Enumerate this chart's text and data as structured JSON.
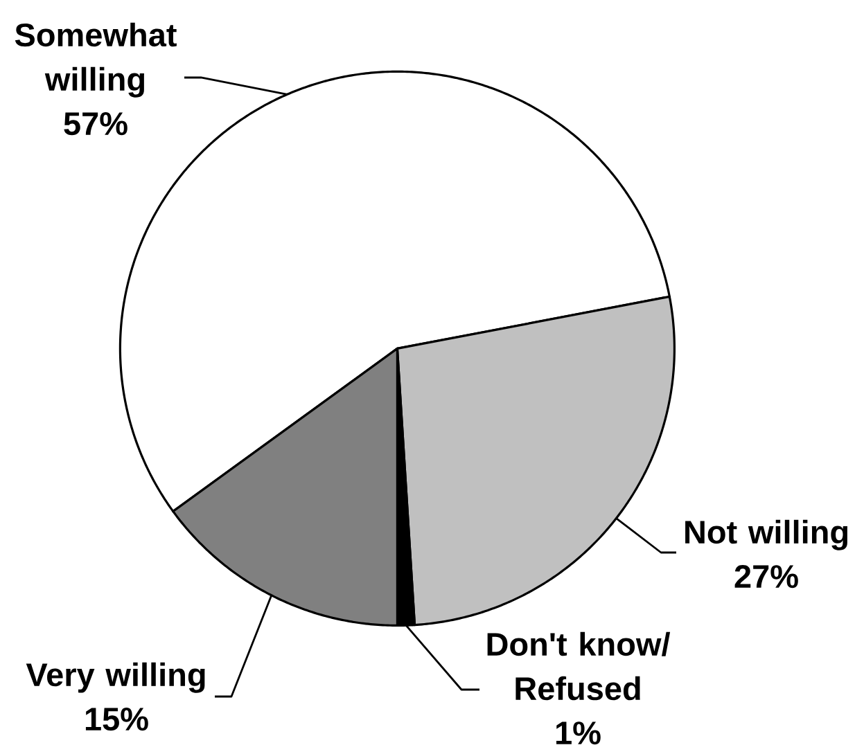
{
  "chart_data": {
    "type": "pie",
    "categories": [
      "Somewhat willing",
      "Not willing",
      "Don't know/Refused",
      "Very willing"
    ],
    "values": [
      57,
      27,
      1,
      15
    ],
    "colors": [
      "#ffffff",
      "#c0c0c0",
      "#000000",
      "#808080"
    ],
    "value_labels": [
      "57%",
      "27%",
      "1%",
      "15%"
    ]
  }
}
